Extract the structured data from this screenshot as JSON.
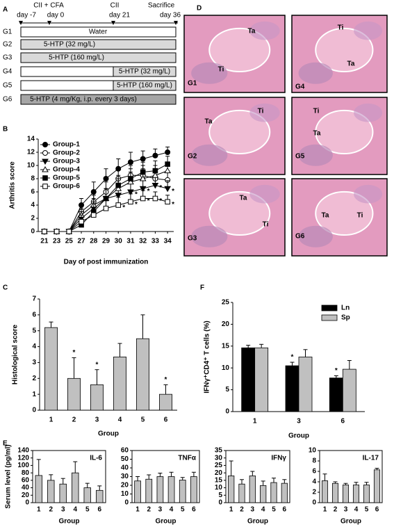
{
  "panels": [
    "A",
    "B",
    "C",
    "D",
    "E",
    "F"
  ],
  "timeline": {
    "top_labels": [
      "CII + CFA",
      "CII",
      "Sacrifice"
    ],
    "day_labels": [
      "day -7",
      "day 0",
      "day 21",
      "day 36"
    ],
    "groups": [
      {
        "name": "G1",
        "treatment": "Water"
      },
      {
        "name": "G2",
        "treatment": "5-HTP (32 mg/L)"
      },
      {
        "name": "G3",
        "treatment": "5-HTP (160 mg/L)"
      },
      {
        "name": "G4",
        "treatment": "5-HTP (32 mg/L)"
      },
      {
        "name": "G5",
        "treatment": "5-HTP (160 mg/L)"
      },
      {
        "name": "G6",
        "treatment": "5-HTP (4 mg/Kg, i.p. every 3 days)"
      }
    ]
  },
  "histology": {
    "images": [
      {
        "group": "G1",
        "labels": [
          "Ta",
          "Ti"
        ]
      },
      {
        "group": "G4",
        "labels": [
          "Ti",
          "Ta"
        ]
      },
      {
        "group": "G2",
        "labels": [
          "Ti",
          "Ta"
        ]
      },
      {
        "group": "G5",
        "labels": [
          "Ti",
          "Ta"
        ]
      },
      {
        "group": "G3",
        "labels": [
          "Ta",
          "Ti"
        ]
      },
      {
        "group": "G6",
        "labels": [
          "Ta",
          "Ti"
        ]
      }
    ]
  },
  "chart_data": [
    {
      "type": "line",
      "x_label": "Day of post immunization",
      "y_label": "Arthritis score",
      "categories": [
        "21",
        "23",
        "25",
        "27",
        "28",
        "29",
        "30",
        "31",
        "32",
        "33",
        "34"
      ],
      "ylim": [
        0,
        14
      ],
      "yticks": [
        0,
        2,
        4,
        6,
        8,
        10,
        12,
        14
      ],
      "legend": "upper left",
      "series": [
        {
          "name": "Group-1",
          "color": "#000000",
          "marker": "circle",
          "values": [
            0,
            0,
            0,
            4,
            6,
            8,
            9.5,
            10.5,
            11,
            11.5,
            12
          ],
          "errors": [
            0,
            0,
            0.3,
            1,
            1.5,
            1.5,
            1.5,
            1.5,
            1.2,
            1,
            0.8
          ],
          "significance": [
            null,
            null,
            null,
            null,
            null,
            null,
            null,
            null,
            null,
            null,
            null
          ]
        },
        {
          "name": "Group-2",
          "color": "#000000",
          "marker": "circle-open",
          "values": [
            0,
            0,
            0,
            3,
            4.5,
            6,
            8,
            8.5,
            8.5,
            8,
            7.8
          ],
          "errors": [
            0,
            0,
            0.3,
            1,
            1.5,
            1.5,
            1.5,
            1.5,
            1.5,
            1.5,
            1.2
          ],
          "significance": [
            null,
            null,
            null,
            null,
            null,
            null,
            null,
            null,
            null,
            null,
            null
          ]
        },
        {
          "name": "Group-3",
          "color": "#000000",
          "marker": "triangle-down",
          "values": [
            0,
            0,
            0,
            2,
            3.5,
            5,
            5.5,
            6,
            6.5,
            7,
            6.5
          ],
          "errors": [
            0,
            0,
            0.3,
            1,
            1.5,
            1.5,
            1.5,
            1.5,
            1.5,
            1.5,
            1.2
          ],
          "significance": [
            null,
            null,
            null,
            null,
            null,
            null,
            null,
            "*",
            "*",
            "*",
            "*"
          ]
        },
        {
          "name": "Group-4",
          "color": "#000000",
          "marker": "triangle-up-open",
          "values": [
            0,
            0,
            0,
            2.5,
            4,
            5,
            6.5,
            7.5,
            8,
            8.5,
            9.2
          ],
          "errors": [
            0,
            0,
            0.3,
            1,
            1.5,
            1.5,
            1.5,
            1.5,
            1.5,
            1.5,
            1.2
          ],
          "significance": [
            null,
            null,
            null,
            null,
            null,
            null,
            null,
            null,
            null,
            null,
            null
          ]
        },
        {
          "name": "Group-5",
          "color": "#000000",
          "marker": "square",
          "values": [
            0,
            0,
            0,
            1,
            3,
            5,
            7,
            8,
            9,
            9.2,
            10.2
          ],
          "errors": [
            0,
            0,
            0.3,
            1,
            1.5,
            1.5,
            1.5,
            1.5,
            1.5,
            1.5,
            1.2
          ],
          "significance": [
            null,
            null,
            null,
            null,
            null,
            null,
            null,
            null,
            null,
            null,
            null
          ]
        },
        {
          "name": "Group-6",
          "color": "#000000",
          "marker": "square-open",
          "values": [
            0,
            0,
            0,
            1.5,
            2.5,
            3.5,
            4,
            4.5,
            5,
            5,
            4.5
          ],
          "errors": [
            0,
            0,
            0.3,
            1,
            1.2,
            1.2,
            1.2,
            1.2,
            1.2,
            1,
            1
          ],
          "significance": [
            null,
            null,
            null,
            null,
            null,
            null,
            "*",
            "*",
            "*",
            "*",
            "*"
          ]
        }
      ]
    },
    {
      "type": "bar",
      "x_label": "Group",
      "y_label": "Histological score",
      "categories": [
        "1",
        "2",
        "3",
        "4",
        "5",
        "6"
      ],
      "values": [
        5.2,
        2.0,
        1.6,
        3.35,
        4.5,
        1.0
      ],
      "errors": [
        0.35,
        1.3,
        0.95,
        0.85,
        1.5,
        0.6
      ],
      "significance": [
        null,
        "*",
        "*",
        null,
        null,
        "*"
      ],
      "color": "#c0c0c0",
      "ylim": [
        0,
        7
      ],
      "yticks": [
        0,
        1,
        2,
        3,
        4,
        5,
        6,
        7
      ]
    },
    {
      "type": "bar",
      "x_label": "Group",
      "y_label": "IFNγ⁺CD4⁺ T cells (%)",
      "categories": [
        "1",
        "3",
        "6"
      ],
      "ylim": [
        0,
        25
      ],
      "yticks": [
        0,
        5,
        10,
        15,
        20,
        25
      ],
      "legend": "upper right",
      "series": [
        {
          "name": "Ln",
          "color": "#000000",
          "values": [
            14.6,
            10.5,
            7.7
          ],
          "errors": [
            0.6,
            0.8,
            0.5
          ],
          "significance": [
            null,
            "*",
            "*"
          ]
        },
        {
          "name": "Sp",
          "color": "#c0c0c0",
          "values": [
            14.6,
            12.5,
            9.7
          ],
          "errors": [
            0.8,
            1.7,
            2.0
          ],
          "significance": [
            null,
            null,
            null
          ]
        }
      ]
    },
    {
      "type": "bar",
      "title": "IL-6",
      "x_label": "Group",
      "y_label": "Serum level (pg/ml)",
      "categories": [
        "1",
        "2",
        "3",
        "4",
        "5",
        "6"
      ],
      "values": [
        73,
        60,
        50,
        80,
        40,
        33
      ],
      "errors": [
        43,
        15,
        15,
        30,
        12,
        12
      ],
      "color": "#c0c0c0",
      "ylim": [
        0,
        140
      ],
      "yticks": [
        0,
        20,
        40,
        60,
        80,
        100,
        120,
        140
      ]
    },
    {
      "type": "bar",
      "title": "TNFα",
      "x_label": "Group",
      "categories": [
        "1",
        "2",
        "3",
        "4",
        "5",
        "6"
      ],
      "values": [
        25,
        27,
        30,
        30,
        26,
        30
      ],
      "errors": [
        5,
        5,
        4,
        5,
        3,
        5
      ],
      "color": "#c0c0c0",
      "ylim": [
        0,
        60
      ],
      "yticks": [
        0,
        10,
        20,
        30,
        40,
        50,
        60
      ]
    },
    {
      "type": "bar",
      "title": "IFNγ",
      "x_label": "Group",
      "categories": [
        "1",
        "2",
        "3",
        "4",
        "5",
        "6"
      ],
      "values": [
        18,
        12.5,
        18,
        11.5,
        13.5,
        13
      ],
      "errors": [
        10,
        3,
        3,
        3,
        3,
        2.5
      ],
      "color": "#c0c0c0",
      "ylim": [
        0,
        35
      ],
      "yticks": [
        0,
        5,
        10,
        15,
        20,
        25,
        30,
        35
      ]
    },
    {
      "type": "bar",
      "title": "IL-17",
      "x_label": "Group",
      "categories": [
        "1",
        "2",
        "3",
        "4",
        "5",
        "6"
      ],
      "values": [
        4.2,
        3.7,
        3.4,
        3.4,
        3.4,
        6.3
      ],
      "errors": [
        1.3,
        0.3,
        0.3,
        0.5,
        0.5,
        0.3
      ],
      "color": "#c0c0c0",
      "ylim": [
        0,
        10
      ],
      "yticks": [
        0,
        2,
        4,
        6,
        8,
        10
      ]
    }
  ]
}
